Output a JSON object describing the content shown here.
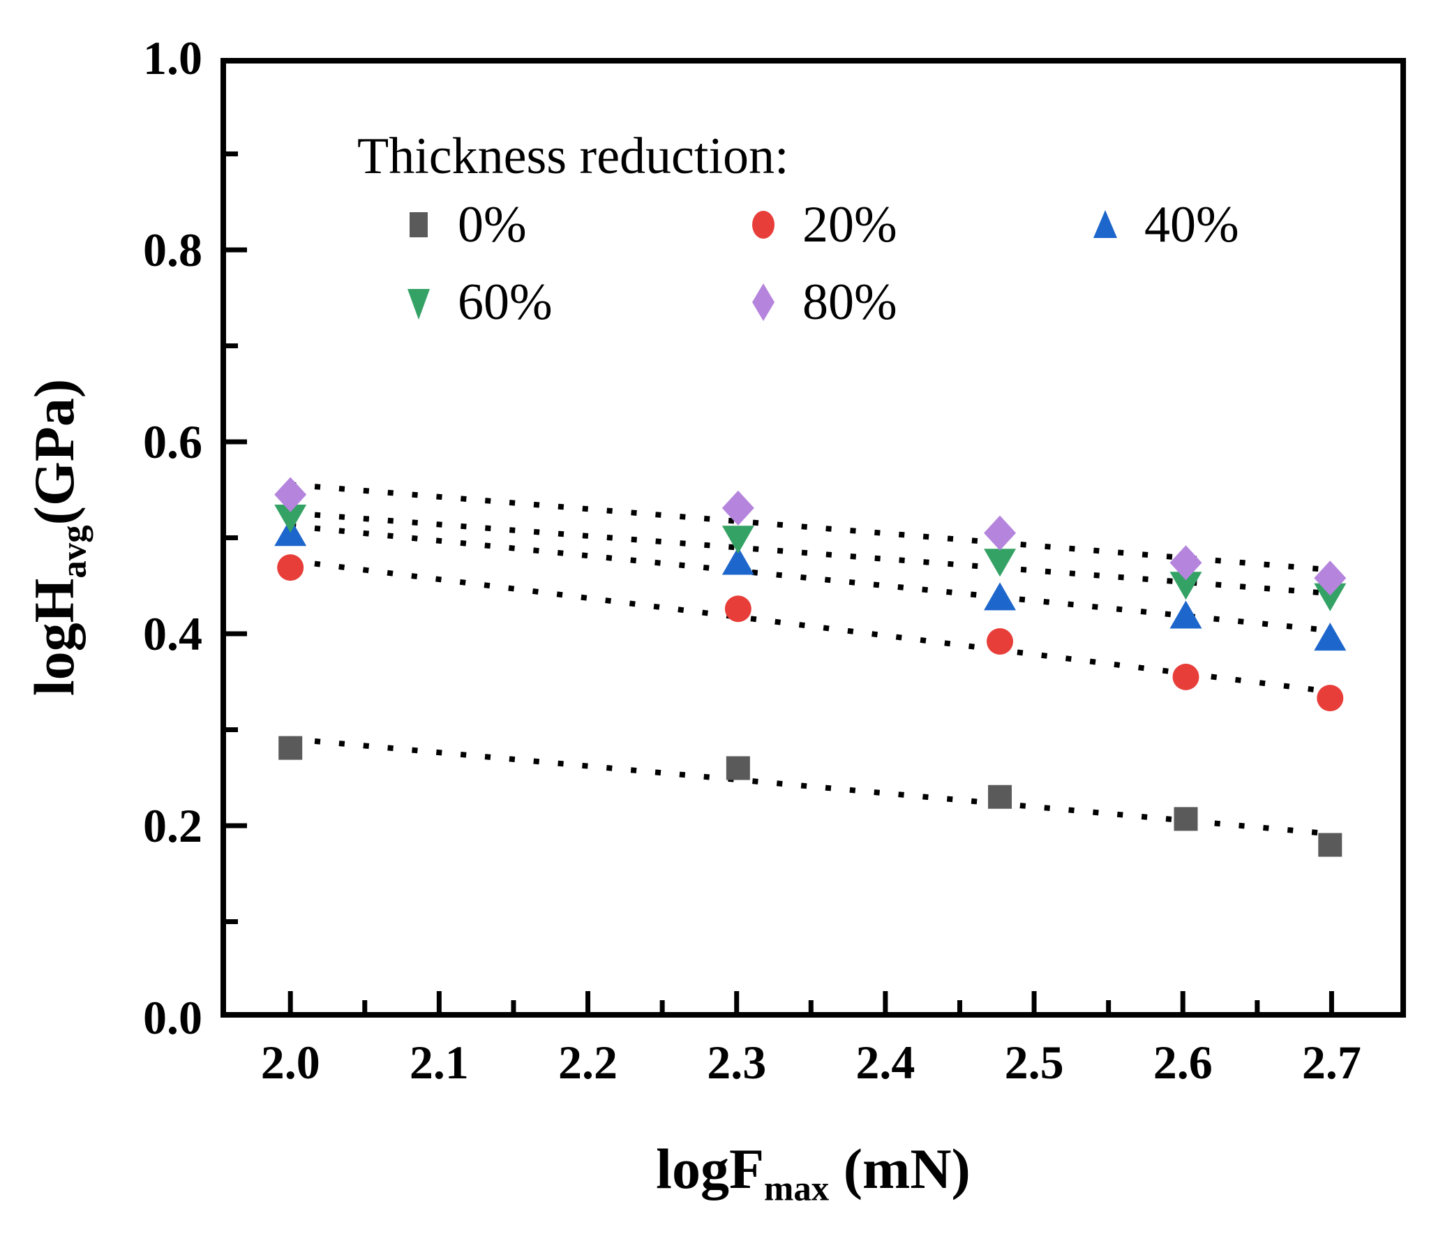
{
  "figure": {
    "background": "#ffffff",
    "frame_color": "#000000"
  },
  "axes": {
    "x": {
      "label_main": "logF",
      "label_sub": "max",
      "label_unit": " (mN)",
      "range": [
        1.953,
        2.75
      ],
      "major_tick_values": [
        2.0,
        2.1,
        2.2,
        2.3,
        2.4,
        2.5,
        2.6,
        2.7
      ],
      "tick_labels": [
        "2.0",
        "2.1",
        "2.2",
        "2.3",
        "2.4",
        "2.5",
        "2.6",
        "2.7"
      ],
      "minor_tick_values": [
        2.05,
        2.15,
        2.25,
        2.35,
        2.45,
        2.55,
        2.65
      ]
    },
    "y": {
      "label_main": "logH",
      "label_sub": "avg",
      "label_unit": "(GPa)",
      "range": [
        0.0,
        1.0
      ],
      "major_tick_values": [
        0.0,
        0.2,
        0.4,
        0.6,
        0.8,
        1.0
      ],
      "tick_labels": [
        "0.0",
        "0.2",
        "0.4",
        "0.6",
        "0.8",
        "1.0"
      ],
      "minor_tick_values": [
        0.1,
        0.3,
        0.5,
        0.7,
        0.9
      ]
    }
  },
  "legend": {
    "title": "Thickness reduction:",
    "items": [
      {
        "label": "0%",
        "marker": "square",
        "color": "#5a5a5a",
        "row": 0,
        "col": 0
      },
      {
        "label": "20%",
        "marker": "circle",
        "color": "#e83e3a",
        "row": 0,
        "col": 1
      },
      {
        "label": "40%",
        "marker": "triangle-up",
        "color": "#1d66cc",
        "row": 0,
        "col": 2
      },
      {
        "label": "60%",
        "marker": "triangle-down",
        "color": "#35a265",
        "row": 1,
        "col": 0
      },
      {
        "label": "80%",
        "marker": "diamond",
        "color": "#b584dd",
        "row": 1,
        "col": 1
      }
    ]
  },
  "chart_data": {
    "type": "scatter",
    "title": "",
    "xlabel": "logFmax (mN)",
    "ylabel": "logHavg(GPa)",
    "x": [
      2.0,
      2.301,
      2.477,
      2.602,
      2.699
    ],
    "series": [
      {
        "name": "0%",
        "marker": "square",
        "color": "#5a5a5a",
        "values": [
          0.281,
          0.26,
          0.23,
          0.207,
          0.18
        ]
      },
      {
        "name": "20%",
        "marker": "circle",
        "color": "#e83e3a",
        "values": [
          0.469,
          0.426,
          0.392,
          0.355,
          0.333
        ]
      },
      {
        "name": "40%",
        "marker": "triangle-up",
        "color": "#1d66cc",
        "values": [
          0.506,
          0.476,
          0.439,
          0.42,
          0.397
        ]
      },
      {
        "name": "60%",
        "marker": "triangle-down",
        "color": "#35a265",
        "values": [
          0.52,
          0.498,
          0.474,
          0.45,
          0.438
        ]
      },
      {
        "name": "80%",
        "marker": "diamond",
        "color": "#b584dd",
        "values": [
          0.545,
          0.531,
          0.505,
          0.474,
          0.458
        ]
      }
    ],
    "trend_lines": {
      "style": "dotted",
      "color": "#000000",
      "fit": "linear-least-squares",
      "x_start": 2.0,
      "x_end": 2.699
    },
    "xlim": [
      1.953,
      2.75
    ],
    "ylim": [
      0.0,
      1.0
    ],
    "grid": false,
    "legend_position": "upper-left-inside"
  }
}
